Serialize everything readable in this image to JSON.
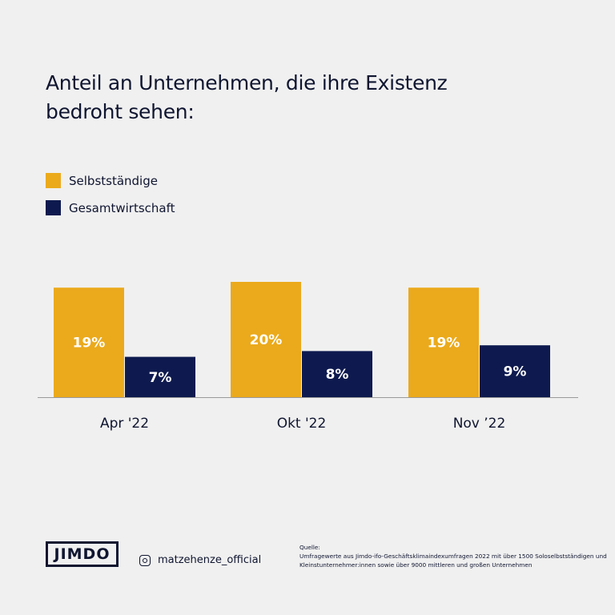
{
  "title_lines": [
    "Anteil an Unternehmen, die ihre Existenz",
    "bedroht sehen:"
  ],
  "colors": {
    "selbststaendige": "#ebaa1c",
    "gesamtwirtschaft": "#0e1a4f",
    "background": "#f0f0f0"
  },
  "chart_data": {
    "type": "bar",
    "title": "Anteil an Unternehmen, die ihre Existenz bedroht sehen:",
    "categories": [
      "Apr '22",
      "Okt '22",
      "Nov ’22"
    ],
    "series": [
      {
        "name": "Selbstständige",
        "values": [
          19,
          20,
          19
        ],
        "labels": [
          "19%",
          "20%",
          "19%"
        ]
      },
      {
        "name": "Gesamtwirtschaft",
        "values": [
          7,
          8,
          9
        ],
        "labels": [
          "7%",
          "8%",
          "9%"
        ]
      }
    ],
    "unit": "%",
    "grid": false,
    "legend": "top-left"
  },
  "footer": {
    "logo": "JIMDO",
    "instagram_icon": "instagram-icon",
    "instagram_handle": "matzehenze_official",
    "source_label": "Quelle:",
    "source_text": "Umfragewerte aus Jimdo-ifo-Geschäftsklimaindexumfragen 2022 mit über 1500 Soloselbstständigen und Kleinstunternehmer:innen sowie über 9000 mittleren und großen Unternehmen"
  }
}
